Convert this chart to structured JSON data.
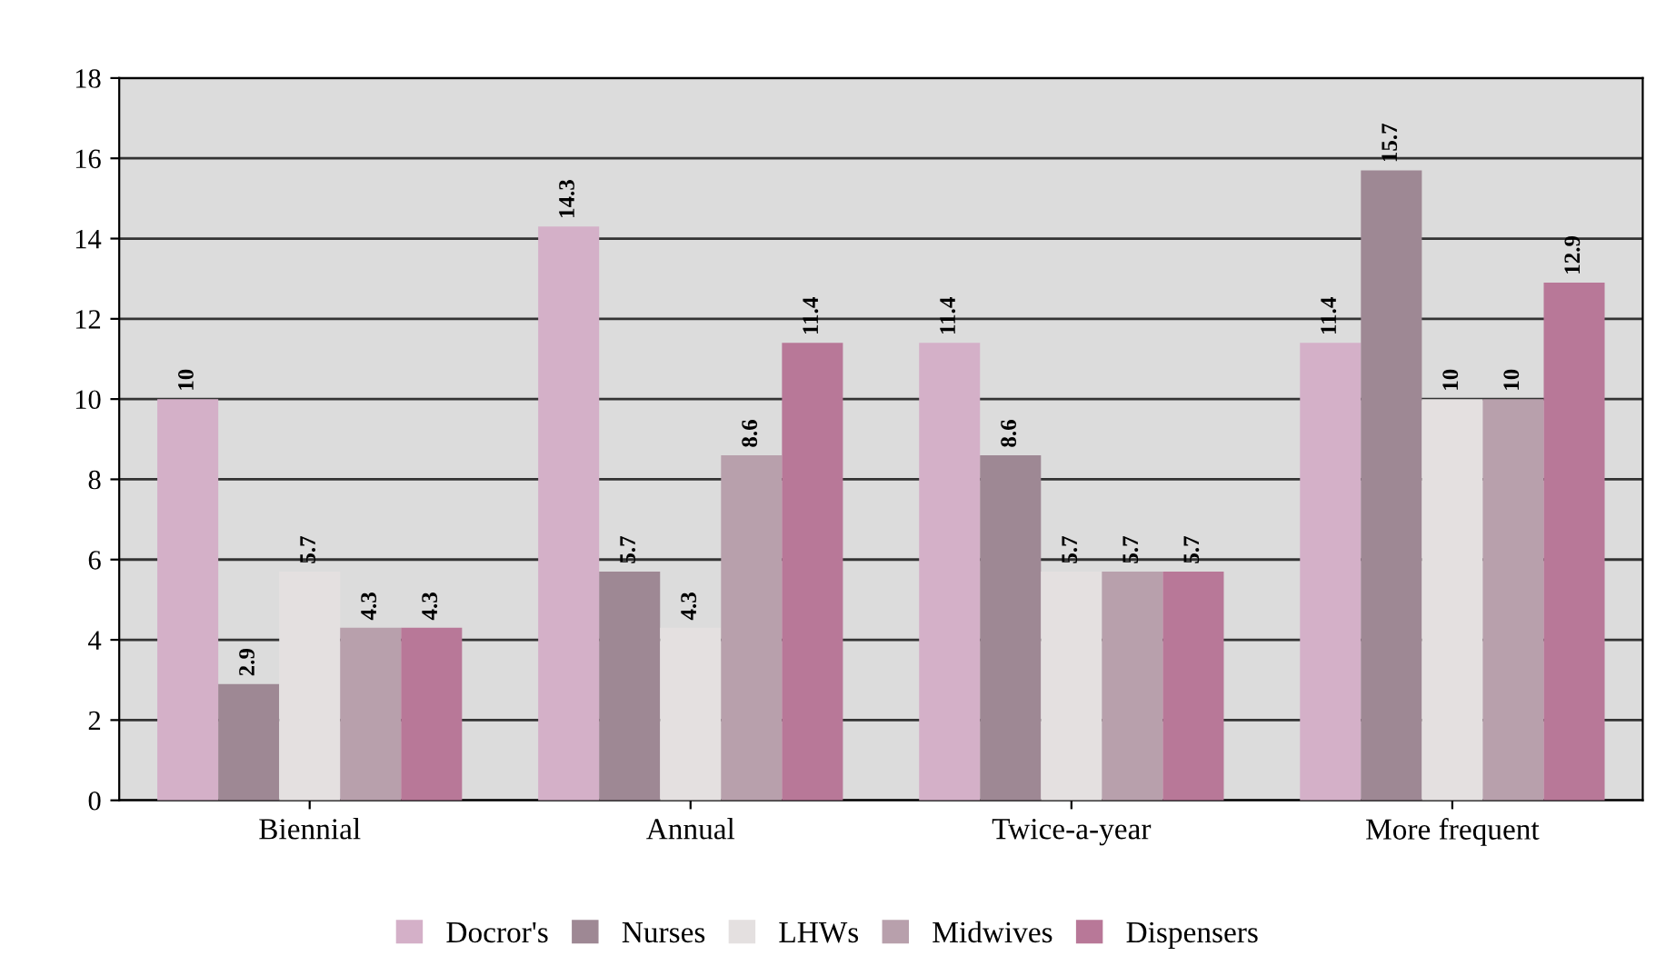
{
  "chart_data": {
    "type": "bar",
    "categories": [
      "Biennial",
      "Annual",
      "Twice-a-year",
      "More frequent"
    ],
    "series": [
      {
        "name": "Docror's",
        "color": "#d4b0c8",
        "values": [
          10,
          14.3,
          11.4,
          11.4
        ]
      },
      {
        "name": "Nurses",
        "color": "#9e8894",
        "values": [
          2.9,
          5.7,
          8.6,
          15.7
        ]
      },
      {
        "name": "LHWs",
        "color": "#e4e0e0",
        "values": [
          5.7,
          4.3,
          5.7,
          10
        ]
      },
      {
        "name": "Midwives",
        "color": "#b8a0ac",
        "values": [
          4.3,
          8.6,
          5.7,
          10
        ]
      },
      {
        "name": "Dispensers",
        "color": "#b87898",
        "values": [
          4.3,
          11.4,
          5.7,
          12.9
        ]
      }
    ],
    "ylim": [
      0,
      18
    ],
    "yticks": [
      0,
      2,
      4,
      6,
      8,
      10,
      12,
      14,
      16,
      18
    ],
    "grid": "y",
    "legend": "bottom",
    "data_labels": true
  }
}
